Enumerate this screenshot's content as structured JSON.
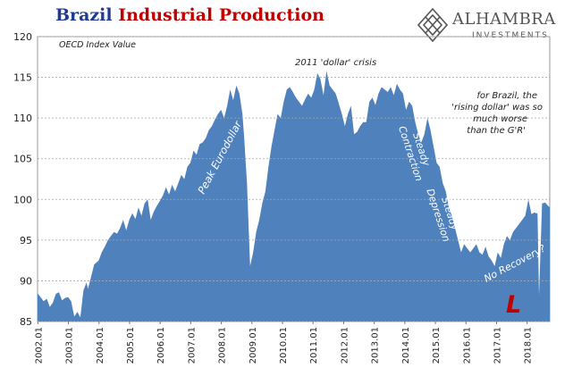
{
  "title_part1": "Brazil",
  "title_part2": "Industrial Production",
  "logo": {
    "name": "ALHAMBRA",
    "subtitle": "INVESTMENTS",
    "icon": "diamond-knot-icon"
  },
  "colors": {
    "area": "#4f81bd",
    "title_blue": "#1f3a93",
    "title_red": "#c00000",
    "annotation_red": "#c00000"
  },
  "chart_data": {
    "type": "area",
    "ylabel": "OECD Index Value",
    "ylim": [
      85,
      120
    ],
    "yticks": [
      85,
      90,
      95,
      100,
      105,
      110,
      115,
      120
    ],
    "xlim": [
      2002.0,
      2018.75
    ],
    "xticks": [
      "2002.01",
      "2003.01",
      "2004.01",
      "2005.01",
      "2006.01",
      "2007.01",
      "2008.01",
      "2009.01",
      "2010.01",
      "2011.01",
      "2012.01",
      "2013.01",
      "2014.01",
      "2015.01",
      "2016.01",
      "2017.01",
      "2018.01"
    ],
    "grid": true,
    "series": [
      {
        "x": [
          2002.0,
          2002.1,
          2002.2,
          2002.3,
          2002.4,
          2002.5,
          2002.6,
          2002.7,
          2002.8,
          2002.9,
          2003.0,
          2003.1,
          2003.2,
          2003.3,
          2003.4,
          2003.5,
          2003.6,
          2003.65,
          2003.75,
          2003.85,
          2004.0,
          2004.1,
          2004.2,
          2004.3,
          2004.4,
          2004.5,
          2004.6,
          2004.7,
          2004.8,
          2004.9,
          2005.0,
          2005.1,
          2005.2,
          2005.3,
          2005.4,
          2005.5,
          2005.6,
          2005.7,
          2005.8,
          2005.9,
          2006.0,
          2006.1,
          2006.2,
          2006.3,
          2006.4,
          2006.5,
          2006.6,
          2006.7,
          2006.8,
          2006.9,
          2007.0,
          2007.1,
          2007.2,
          2007.3,
          2007.4,
          2007.5,
          2007.6,
          2007.7,
          2007.8,
          2007.9,
          2008.0,
          2008.1,
          2008.2,
          2008.3,
          2008.4,
          2008.5,
          2008.6,
          2008.7,
          2008.75,
          2008.85,
          2008.95,
          2009.05,
          2009.15,
          2009.25,
          2009.35,
          2009.45,
          2009.55,
          2009.65,
          2009.75,
          2009.85,
          2009.95,
          2010.05,
          2010.15,
          2010.25,
          2010.35,
          2010.45,
          2010.55,
          2010.65,
          2010.75,
          2010.85,
          2010.95,
          2011.05,
          2011.15,
          2011.25,
          2011.35,
          2011.45,
          2011.55,
          2011.65,
          2011.75,
          2011.85,
          2011.95,
          2012.05,
          2012.15,
          2012.25,
          2012.35,
          2012.45,
          2012.55,
          2012.65,
          2012.75,
          2012.85,
          2012.95,
          2013.05,
          2013.15,
          2013.25,
          2013.35,
          2013.45,
          2013.55,
          2013.65,
          2013.75,
          2013.85,
          2013.95,
          2014.05,
          2014.15,
          2014.25,
          2014.35,
          2014.45,
          2014.55,
          2014.65,
          2014.75,
          2014.85,
          2014.95,
          2015.05,
          2015.15,
          2015.25,
          2015.35,
          2015.45,
          2015.55,
          2015.65,
          2015.75,
          2015.85,
          2015.95,
          2016.05,
          2016.15,
          2016.25,
          2016.35,
          2016.45,
          2016.55,
          2016.65,
          2016.75,
          2016.85,
          2016.95,
          2017.05,
          2017.15,
          2017.25,
          2017.35,
          2017.45,
          2017.55,
          2017.65,
          2017.75,
          2017.85,
          2017.95,
          2018.05,
          2018.15,
          2018.25,
          2018.3,
          2018.35,
          2018.4,
          2018.5,
          2018.6,
          2018.7,
          2018.75
        ],
        "y": [
          88.5,
          88.0,
          87.5,
          87.8,
          86.8,
          87.3,
          88.4,
          88.6,
          87.6,
          87.9,
          88.0,
          87.5,
          85.6,
          86.2,
          85.5,
          88.8,
          89.8,
          89.0,
          90.5,
          92.0,
          92.5,
          93.5,
          94.2,
          95.0,
          95.5,
          96.0,
          95.8,
          96.5,
          97.5,
          96.2,
          97.5,
          98.3,
          97.6,
          99.0,
          98.0,
          99.5,
          100.0,
          97.5,
          98.5,
          99.2,
          99.8,
          100.5,
          101.5,
          100.6,
          101.8,
          101.0,
          102.0,
          103.0,
          102.5,
          104.0,
          104.5,
          106.0,
          105.5,
          106.8,
          107.0,
          107.5,
          108.5,
          109.0,
          109.8,
          110.5,
          111.0,
          110.0,
          111.5,
          113.5,
          112.2,
          114.0,
          113.0,
          110.5,
          108.0,
          102.0,
          91.8,
          93.5,
          96.0,
          97.5,
          99.5,
          101.0,
          104.0,
          106.5,
          108.5,
          110.5,
          110.0,
          112.0,
          113.5,
          113.8,
          113.2,
          112.5,
          112.0,
          111.5,
          112.3,
          113.0,
          112.5,
          113.5,
          115.5,
          114.8,
          112.8,
          115.8,
          114.0,
          113.5,
          113.0,
          111.8,
          110.5,
          109.0,
          110.5,
          111.5,
          108.0,
          108.3,
          109.0,
          109.5,
          109.5,
          112.0,
          112.5,
          111.6,
          113.0,
          113.8,
          113.5,
          113.2,
          113.8,
          112.8,
          114.2,
          113.5,
          113.0,
          111.0,
          112.0,
          111.5,
          109.5,
          108.0,
          107.0,
          108.0,
          110.0,
          108.5,
          106.5,
          104.5,
          104.0,
          102.0,
          101.0,
          99.0,
          98.0,
          96.5,
          95.0,
          93.5,
          94.5,
          94.0,
          93.5,
          94.0,
          94.5,
          93.5,
          93.2,
          94.2,
          93.0,
          92.5,
          91.8,
          93.5,
          92.8,
          94.5,
          95.5,
          95.0,
          96.0,
          96.5,
          97.0,
          97.5,
          98.0,
          100.0,
          98.2,
          98.4,
          98.3,
          98.3,
          88.2,
          99.5,
          99.6,
          99.2,
          99.0
        ]
      }
    ],
    "annotations": [
      {
        "text": "OECD Index Value",
        "style": "italic"
      },
      {
        "text": "2011 'dollar' crisis",
        "style": "italic"
      },
      {
        "text": "Peak Eurodollar",
        "style": "italic-white"
      },
      {
        "text": "Steady Contraction",
        "style": "italic-white"
      },
      {
        "text": "Steady Depression",
        "style": "italic-white"
      },
      {
        "text": "No Recovery?",
        "style": "italic-white"
      },
      {
        "text": "L",
        "style": "bold-red"
      }
    ],
    "note_lines": [
      "for Brazil, the",
      "'rising dollar' was so",
      "much worse",
      "than the G'R'"
    ]
  }
}
